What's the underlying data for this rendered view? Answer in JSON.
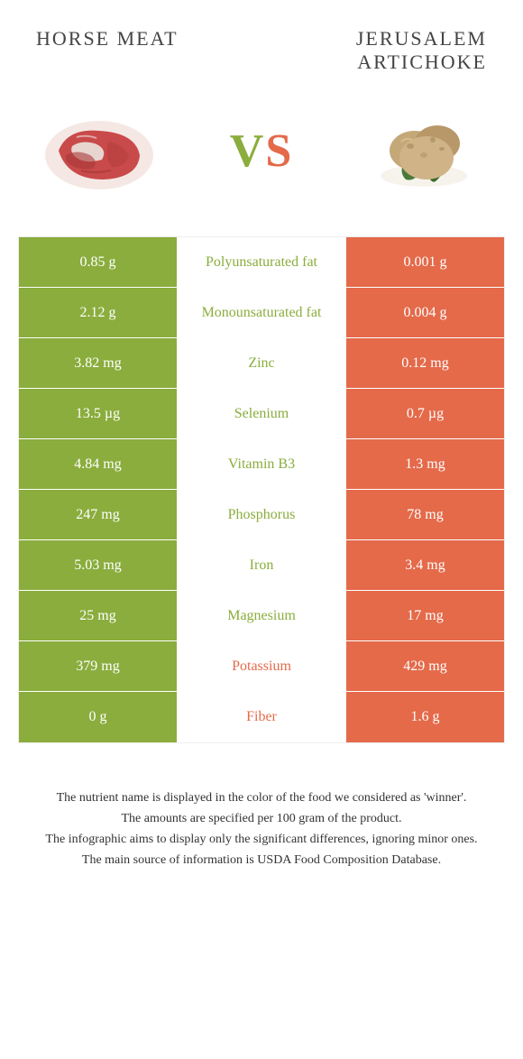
{
  "colors": {
    "green": "#8aad3d",
    "orange": "#e46a4a",
    "text": "#333333",
    "white": "#ffffff"
  },
  "header": {
    "left_title": "Horse meat",
    "right_title": "Jerusalem artichoke"
  },
  "vs": {
    "v": "V",
    "s": "S"
  },
  "rows": [
    {
      "left": "0.85 g",
      "label": "Polyunsaturated fat",
      "right": "0.001 g",
      "winner": "left"
    },
    {
      "left": "2.12 g",
      "label": "Monounsaturated fat",
      "right": "0.004 g",
      "winner": "left"
    },
    {
      "left": "3.82 mg",
      "label": "Zinc",
      "right": "0.12 mg",
      "winner": "left"
    },
    {
      "left": "13.5 µg",
      "label": "Selenium",
      "right": "0.7 µg",
      "winner": "left"
    },
    {
      "left": "4.84 mg",
      "label": "Vitamin B3",
      "right": "1.3 mg",
      "winner": "left"
    },
    {
      "left": "247 mg",
      "label": "Phosphorus",
      "right": "78 mg",
      "winner": "left"
    },
    {
      "left": "5.03 mg",
      "label": "Iron",
      "right": "3.4 mg",
      "winner": "left"
    },
    {
      "left": "25 mg",
      "label": "Magnesium",
      "right": "17 mg",
      "winner": "left"
    },
    {
      "left": "379 mg",
      "label": "Potassium",
      "right": "429 mg",
      "winner": "right"
    },
    {
      "left": "0 g",
      "label": "Fiber",
      "right": "1.6 g",
      "winner": "right"
    }
  ],
  "footer": {
    "line1": "The nutrient name is displayed in the color of the food we considered as 'winner'.",
    "line2": "The amounts are specified per 100 gram of the product.",
    "line3": "The infographic aims to display only the significant differences, ignoring minor ones.",
    "line4": "The main source of information is USDA Food Composition Database."
  }
}
